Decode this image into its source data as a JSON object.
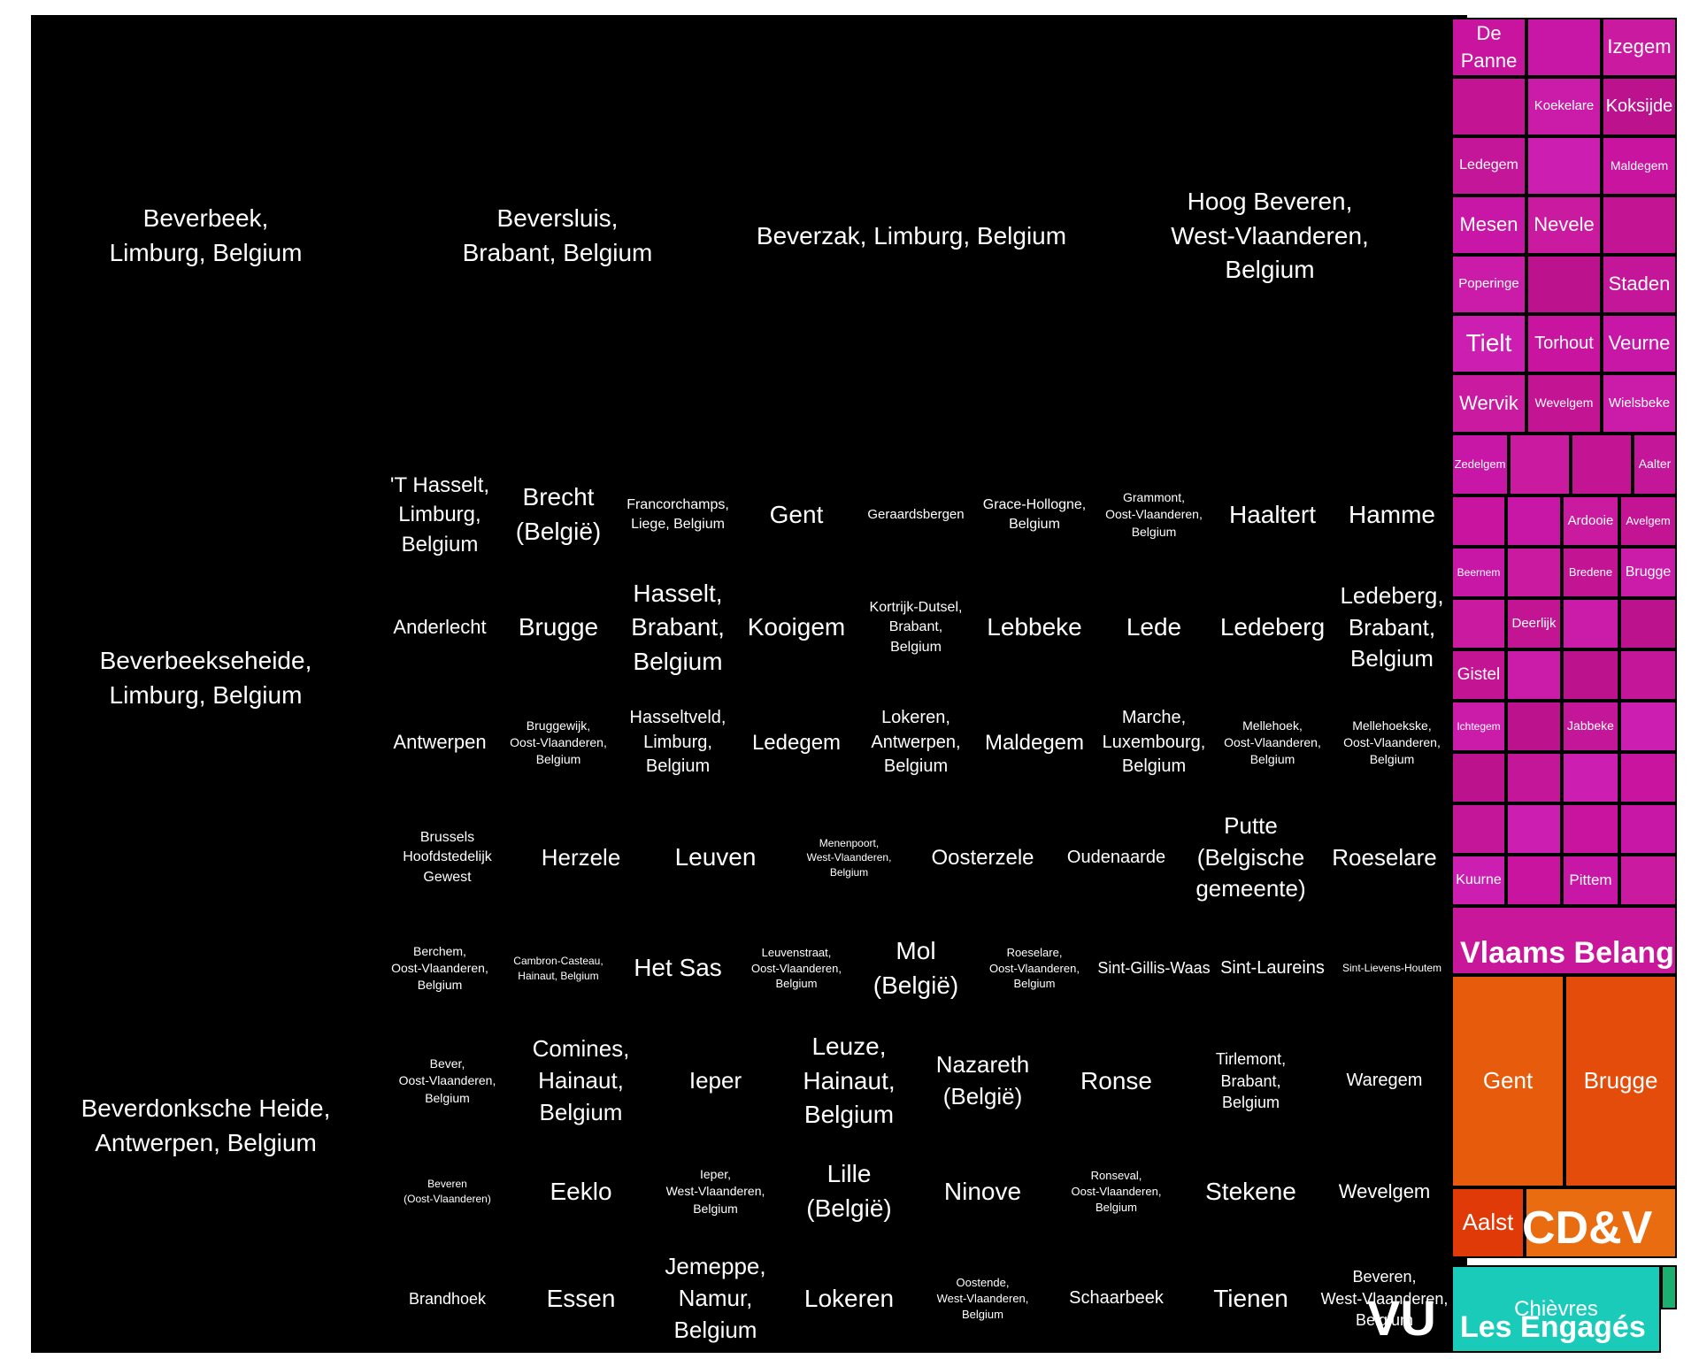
{
  "chart_data": {
    "type": "treemap",
    "title": "",
    "groups": [
      {
        "name": "VU",
        "color": "#000000",
        "items": [
          "Beverbeek,\nLimburg, Belgium",
          "Beversluis,\nBrabant, Belgium",
          "Beverzak, Limburg, Belgium",
          "Hoog Beveren,\nWest-Vlaanderen,\nBelgium",
          "Beverbeekseheide,\nLimburg, Belgium",
          "Beverdonksche Heide,\nAntwerpen, Belgium",
          "'T Hasselt,\nLimburg,\nBelgium",
          "Brecht\n(België)",
          "Francorchamps,\nLiege, Belgium",
          "Gent",
          "Geraardsbergen",
          "Grace-Hollogne,\nBelgium",
          "Grammont,\nOost-Vlaanderen,\nBelgium",
          "Haaltert",
          "Hamme",
          "Anderlecht",
          "Brugge",
          "Hasselt,\nBrabant,\nBelgium",
          "Kooigem",
          "Kortrijk-Dutsel,\nBrabant,\nBelgium",
          "Lebbeke",
          "Lede",
          "Ledeberg",
          "Ledeberg,\nBrabant,\nBelgium",
          "Antwerpen",
          "Bruggewijk,\nOost-Vlaanderen,\nBelgium",
          "Hasseltveld,\nLimburg,\nBelgium",
          "Ledegem",
          "Lokeren,\nAntwerpen,\nBelgium",
          "Maldegem",
          "Marche,\nLuxembourg,\nBelgium",
          "Mellehoek,\nOost-Vlaanderen,\nBelgium",
          "Mellehoekske,\nOost-Vlaanderen,\nBelgium",
          "Brussels\nHoofdstedelijk\nGewest",
          "Herzele",
          "Leuven",
          "Menenpoort,\nWest-Vlaanderen,\nBelgium",
          "Oosterzele",
          "Oudenaarde",
          "Putte\n(Belgische\ngemeente)",
          "Roeselare",
          "Berchem,\nOost-Vlaanderen,\nBelgium",
          "Cambron-Casteau,\nHainaut, Belgium",
          "Het Sas",
          "Leuvenstraat,\nOost-Vlaanderen,\nBelgium",
          "Mol\n(België)",
          "Roeselare,\nOost-Vlaanderen,\nBelgium",
          "Sint-Gillis-Waas",
          "Sint-Laureins",
          "Sint-Lievens-Houtem",
          "Bever,\nOost-Vlaanderen,\nBelgium",
          "Comines,\nHainaut,\nBelgium",
          "Ieper",
          "Leuze,\nHainaut,\nBelgium",
          "Nazareth\n(België)",
          "Ronse",
          "Tirlemont,\nBrabant,\nBelgium",
          "Waregem",
          "Beveren\n(Oost-Vlaanderen)",
          "Eeklo",
          "Ieper,\nWest-Vlaanderen,\nBelgium",
          "Lille\n(België)",
          "Ninove",
          "Ronseval,\nOost-Vlaanderen,\nBelgium",
          "Stekene",
          "Wevelgem",
          "Brandhoek",
          "Essen",
          "Jemeppe,\nNamur,\nBelgium",
          "Lokeren",
          "Oostende,\nWest-Vlaanderen,\nBelgium",
          "Schaarbeek",
          "Tienen",
          "Beveren,\nWest-Vlaanderen,\nBelgium"
        ]
      },
      {
        "name": "Vlaams Belang",
        "color": "#c8179a",
        "items": [
          "De\nPanne",
          "Izegem",
          "Koekelare",
          "Koksijde",
          "Ledegem",
          "Maldegem",
          "Mesen",
          "Nevele",
          "Poperinge",
          "Staden",
          "Tielt",
          "Torhout",
          "Veurne",
          "Wervik",
          "Wevelgem",
          "Wielsbeke",
          "Zedelgem",
          "Aalter",
          "Ardooie",
          "Avelgem",
          "Beernem",
          "Bredene",
          "Brugge",
          "Deerlijk",
          "Gistel",
          "Ichtegem",
          "Jabbeke",
          "Kuurne",
          "Pittem"
        ]
      },
      {
        "name": "CD&V",
        "color": "#e8600e",
        "items": [
          "Gent",
          "Brugge",
          "Aalst"
        ]
      },
      {
        "name": "Les Engagés",
        "color": "#19cbb8",
        "items": [
          "Chièvres"
        ]
      }
    ]
  }
}
